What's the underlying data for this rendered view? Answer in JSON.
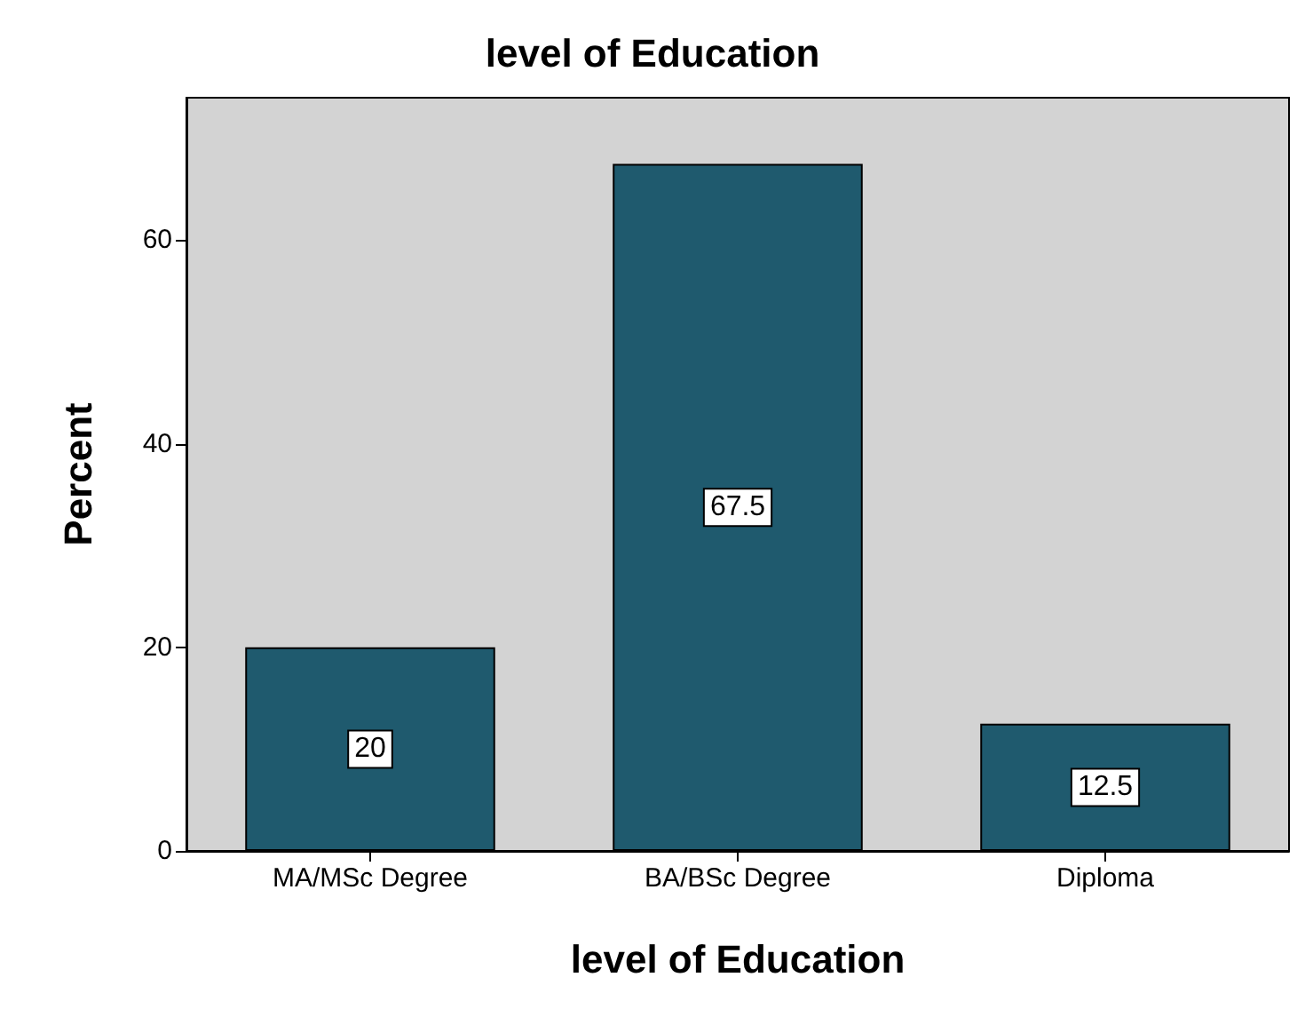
{
  "chart_data": {
    "type": "bar",
    "title": "level of Education",
    "xlabel": "level of Education",
    "ylabel": "Percent",
    "categories": [
      "MA/MSc Degree",
      "BA/BSc Degree",
      "Diploma"
    ],
    "values": [
      20,
      67.5,
      12.5
    ],
    "color": "#1f5a6e",
    "ylim": [
      0,
      74
    ],
    "yticks": [
      0,
      20,
      40,
      60
    ],
    "grid": false,
    "data_labels": true
  }
}
